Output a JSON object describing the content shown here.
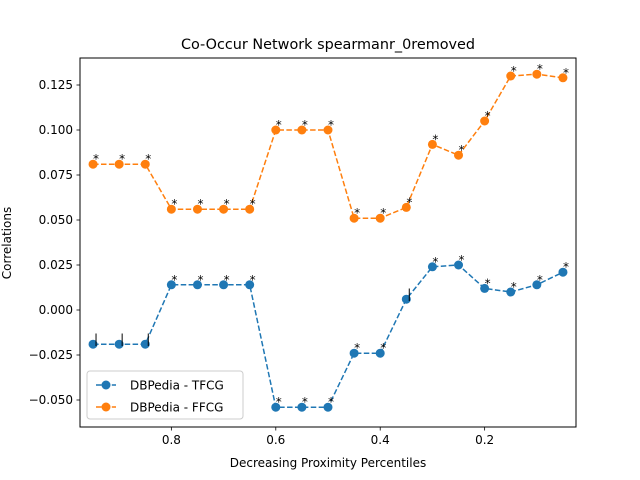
{
  "chart_data": {
    "type": "line",
    "title": "Co-Occur Network spearmanr_0removed",
    "xlabel": "Decreasing Proximity Percentiles",
    "ylabel": "Correlations",
    "x": [
      0.95,
      0.9,
      0.85,
      0.8,
      0.75,
      0.7,
      0.65,
      0.6,
      0.55,
      0.5,
      0.45,
      0.4,
      0.35,
      0.3,
      0.25,
      0.2,
      0.15,
      0.1,
      0.05
    ],
    "xlim": [
      0.975,
      0.025
    ],
    "ylim": [
      -0.065,
      0.14
    ],
    "xticks": [
      0.8,
      0.6,
      0.4,
      0.2
    ],
    "xtick_labels": [
      "0.8",
      "0.6",
      "0.4",
      "0.2"
    ],
    "yticks": [
      -0.05,
      -0.025,
      0.0,
      0.025,
      0.05,
      0.075,
      0.1,
      0.125
    ],
    "ytick_labels": [
      "−0.050",
      "−0.025",
      "0.000",
      "0.025",
      "0.050",
      "0.075",
      "0.100",
      "0.125"
    ],
    "legend_position": "lower-left",
    "series": [
      {
        "name": "DBPedia - TFCG",
        "color": "#1f77b4",
        "values": [
          -0.019,
          -0.019,
          -0.019,
          0.014,
          0.014,
          0.014,
          0.014,
          -0.054,
          -0.054,
          -0.054,
          -0.024,
          -0.024,
          0.006,
          0.024,
          0.025,
          0.012,
          0.01,
          0.014,
          0.021
        ],
        "markers": [
          "|",
          "|",
          "|",
          "*",
          "*",
          "*",
          "*",
          "*",
          "*",
          "*",
          "*",
          "*",
          "|",
          "*",
          "*",
          "*",
          "*",
          "*",
          "*"
        ]
      },
      {
        "name": "DBPedia - FFCG",
        "color": "#ff7f0e",
        "values": [
          0.081,
          0.081,
          0.081,
          0.056,
          0.056,
          0.056,
          0.056,
          0.1,
          0.1,
          0.1,
          0.051,
          0.051,
          0.057,
          0.092,
          0.086,
          0.105,
          0.13,
          0.131,
          0.129
        ],
        "markers": [
          "*",
          "*",
          "*",
          "*",
          "*",
          "*",
          "*",
          "*",
          "*",
          "*",
          "*",
          "*",
          "*",
          "*",
          "*",
          "*",
          "*",
          "*",
          "*"
        ]
      }
    ]
  }
}
